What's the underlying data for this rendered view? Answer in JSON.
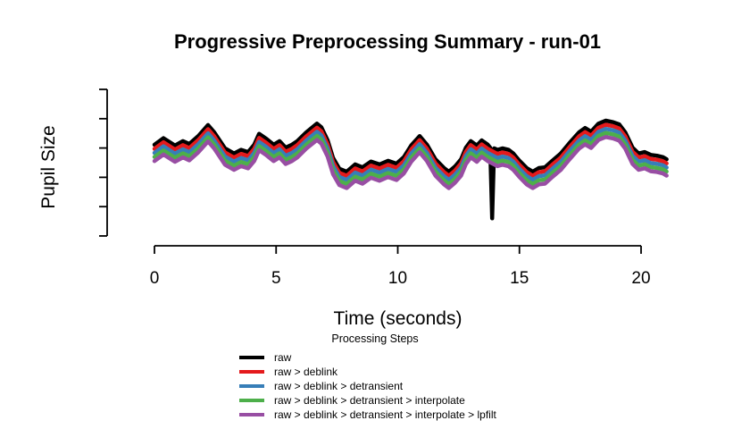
{
  "chart_data": {
    "type": "line",
    "title": "Progressive Preprocessing Summary - run-01",
    "xlabel": "Time (seconds)",
    "ylabel": "Pupil Size",
    "legend_title": "Processing Steps",
    "legend_position": "bottom-center",
    "grid": false,
    "xlim": [
      0,
      21.1
    ],
    "x_ticks": [
      0,
      5,
      10,
      15,
      20
    ],
    "ylim": [
      0,
      100
    ],
    "y_ticks_count": 6,
    "y_tick_labels_visible": false,
    "series": [
      {
        "name": "raw",
        "color": "#000000",
        "offset": 0,
        "extra_points": [
          [
            13.8,
            60
          ],
          [
            13.88,
            11.5
          ],
          [
            13.96,
            59.5
          ]
        ]
      },
      {
        "name": "raw > deblink",
        "color": "#E41A1C",
        "offset": -2.8
      },
      {
        "name": "raw > deblink > detransient",
        "color": "#377EB8",
        "offset": -5.6
      },
      {
        "name": "raw > deblink > detransient > interpolate",
        "color": "#4DAF4A",
        "offset": -8.4
      },
      {
        "name": "raw > deblink > detransient > interpolate > lpfilt",
        "color": "#984EA3",
        "offset": -11.2
      }
    ],
    "base_points": [
      [
        0.0,
        62
      ],
      [
        0.37,
        66.5
      ],
      [
        0.84,
        61.5
      ],
      [
        1.17,
        64.5
      ],
      [
        1.43,
        62.5
      ],
      [
        1.8,
        68
      ],
      [
        2.2,
        75.5
      ],
      [
        2.46,
        70.5
      ],
      [
        2.9,
        59.5
      ],
      [
        3.27,
        56
      ],
      [
        3.56,
        58.5
      ],
      [
        3.85,
        57
      ],
      [
        4.1,
        62
      ],
      [
        4.3,
        69.5
      ],
      [
        4.6,
        66
      ],
      [
        4.9,
        62
      ],
      [
        5.14,
        64.5
      ],
      [
        5.39,
        60
      ],
      [
        5.65,
        62
      ],
      [
        5.87,
        64.5
      ],
      [
        6.24,
        70.5
      ],
      [
        6.68,
        76.5
      ],
      [
        6.86,
        74
      ],
      [
        7.12,
        65
      ],
      [
        7.34,
        53
      ],
      [
        7.6,
        45.5
      ],
      [
        7.9,
        43.5
      ],
      [
        8.25,
        48.5
      ],
      [
        8.55,
        46.5
      ],
      [
        8.9,
        50.5
      ],
      [
        9.25,
        48.5
      ],
      [
        9.6,
        51
      ],
      [
        9.95,
        49
      ],
      [
        10.25,
        53.5
      ],
      [
        10.55,
        61.5
      ],
      [
        10.9,
        68
      ],
      [
        11.2,
        62
      ],
      [
        11.55,
        52
      ],
      [
        11.9,
        46
      ],
      [
        12.1,
        43.5
      ],
      [
        12.35,
        47
      ],
      [
        12.6,
        52
      ],
      [
        12.8,
        60
      ],
      [
        13.0,
        64.5
      ],
      [
        13.25,
        61.5
      ],
      [
        13.45,
        65
      ],
      [
        13.7,
        62
      ],
      [
        14.1,
        58.5
      ],
      [
        14.3,
        59.5
      ],
      [
        14.55,
        58.5
      ],
      [
        14.75,
        56
      ],
      [
        15.0,
        51
      ],
      [
        15.3,
        46
      ],
      [
        15.55,
        43.5
      ],
      [
        15.8,
        46
      ],
      [
        16.05,
        46.5
      ],
      [
        16.35,
        51
      ],
      [
        16.7,
        56
      ],
      [
        17.05,
        63
      ],
      [
        17.45,
        70.5
      ],
      [
        17.7,
        73.5
      ],
      [
        17.95,
        71
      ],
      [
        18.25,
        76.5
      ],
      [
        18.55,
        78.5
      ],
      [
        18.85,
        77.5
      ],
      [
        19.1,
        76
      ],
      [
        19.35,
        70.5
      ],
      [
        19.65,
        60
      ],
      [
        19.9,
        56
      ],
      [
        20.15,
        57
      ],
      [
        20.4,
        55
      ],
      [
        20.65,
        54.5
      ],
      [
        20.9,
        53.5
      ],
      [
        21.05,
        52
      ]
    ]
  }
}
